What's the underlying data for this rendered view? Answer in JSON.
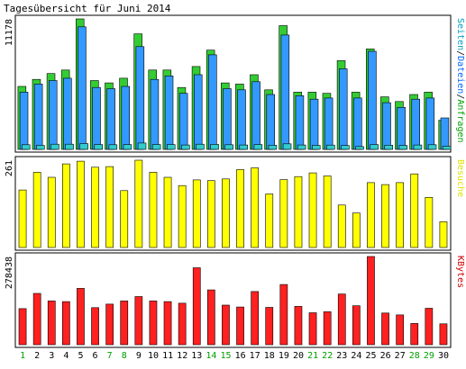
{
  "chart_data": {
    "type": "bar",
    "title": "Tagesübersicht für Juni 2014",
    "categories": [
      "1",
      "2",
      "3",
      "4",
      "5",
      "6",
      "7",
      "8",
      "9",
      "10",
      "11",
      "12",
      "13",
      "14",
      "15",
      "16",
      "17",
      "18",
      "19",
      "20",
      "21",
      "22",
      "23",
      "24",
      "25",
      "26",
      "27",
      "28",
      "29",
      "30"
    ],
    "weekend_days": [
      "1",
      "7",
      "8",
      "14",
      "15",
      "21",
      "22",
      "28",
      "29"
    ],
    "colors": {
      "anfragen": "#00a000",
      "anfragen_light": "#33cc33",
      "dateien": "#0066ff",
      "dateien_light": "#3399ff",
      "seiten": "#00a0c0",
      "seiten_light": "#33cccc",
      "besuche": "#e0e000",
      "besuche_light": "#ffff00",
      "kbytes": "#d00000",
      "kbytes_light": "#ff2020",
      "day_label": "#000000",
      "weekend_label": "#00a000",
      "frame": "#000000",
      "background": "#ffffff"
    },
    "charts": [
      {
        "key": "hits",
        "ymax_label": "11178",
        "ymax": 11178,
        "side_label": {
          "parts": [
            {
              "text": "Seiten",
              "color": "#00a0c0"
            },
            {
              "text": "/",
              "color": "#000000"
            },
            {
              "text": "Dateien",
              "color": "#0066ff"
            },
            {
              "text": "/",
              "color": "#000000"
            },
            {
              "text": "Anfragen",
              "color": "#00a000"
            }
          ]
        },
        "series": [
          {
            "name": "Anfragen",
            "values": [
              5400,
              6000,
              6500,
              6800,
              11178,
              5900,
              5700,
              6100,
              9900,
              6800,
              6800,
              5300,
              7100,
              8500,
              5700,
              5600,
              6400,
              5100,
              10600,
              4900,
              4900,
              4800,
              7600,
              4900,
              8600,
              4500,
              4100,
              4700,
              4900,
              2500
            ]
          },
          {
            "name": "Dateien",
            "values": [
              4900,
              5600,
              5900,
              6100,
              10500,
              5300,
              5200,
              5400,
              8800,
              6000,
              6300,
              4800,
              6400,
              8100,
              5200,
              5100,
              5800,
              4700,
              9800,
              4600,
              4300,
              4400,
              6900,
              4400,
              8400,
              4000,
              3600,
              4300,
              4400,
              2700
            ]
          },
          {
            "name": "Seiten",
            "values": [
              400,
              350,
              450,
              450,
              500,
              420,
              400,
              420,
              550,
              420,
              420,
              380,
              450,
              430,
              400,
              380,
              420,
              360,
              480,
              380,
              350,
              370,
              330,
              250,
              420,
              360,
              340,
              380,
              400,
              270
            ]
          }
        ]
      },
      {
        "key": "visits",
        "ymax_label": "261",
        "ymax": 261,
        "side_label": {
          "parts": [
            {
              "text": "Besuche",
              "color": "#e0e000"
            }
          ]
        },
        "series": [
          {
            "name": "Besuche",
            "values": [
              172,
              225,
              210,
              250,
              258,
              240,
              242,
              170,
              261,
              225,
              210,
              185,
              202,
              200,
              205,
              233,
              238,
              160,
              203,
              212,
              223,
              214,
              127,
              103,
              194,
              188,
              194,
              220,
              150,
              77
            ]
          }
        ]
      },
      {
        "key": "kbytes",
        "ymax_label": "278438",
        "ymax": 278438,
        "side_label": {
          "parts": [
            {
              "text": "KBytes",
              "color": "#d00000"
            }
          ]
        },
        "series": [
          {
            "name": "KBytes",
            "values": [
              114000,
              162000,
              138000,
              136000,
              178000,
              117000,
              128000,
              138000,
              152000,
              138000,
              136000,
              131000,
              243000,
              173000,
              125000,
              119000,
              168000,
              118000,
              190000,
              121000,
              101000,
              104000,
              160000,
              123000,
              278438,
              100000,
              94000,
              67000,
              115000,
              66000
            ]
          }
        ]
      }
    ]
  }
}
